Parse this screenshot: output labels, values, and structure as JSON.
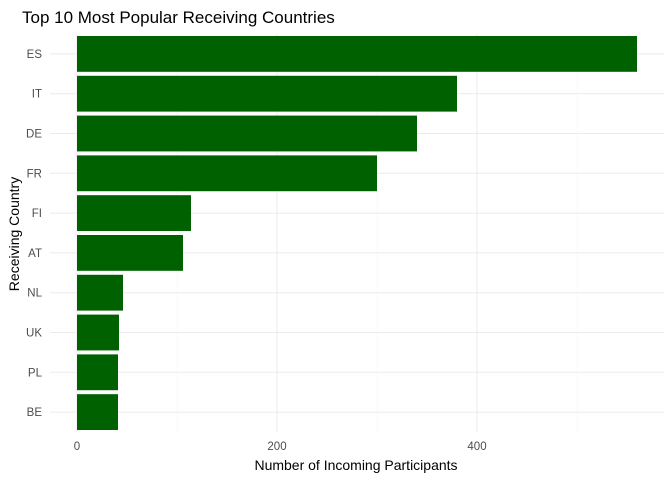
{
  "chart_data": {
    "type": "bar",
    "orientation": "horizontal",
    "title": "Top 10 Most Popular Receiving Countries",
    "xlabel": "Number of Incoming Participants",
    "ylabel": "Receiving Country",
    "categories": [
      "ES",
      "IT",
      "DE",
      "FR",
      "FI",
      "AT",
      "NL",
      "UK",
      "PL",
      "BE"
    ],
    "values": [
      560,
      380,
      340,
      300,
      114,
      106,
      46,
      42,
      41,
      41
    ],
    "xlim": [
      0,
      560
    ],
    "xticks": [
      0,
      200,
      400
    ],
    "grid": true,
    "legend": "none",
    "colors": {
      "bar": "#006100"
    }
  }
}
